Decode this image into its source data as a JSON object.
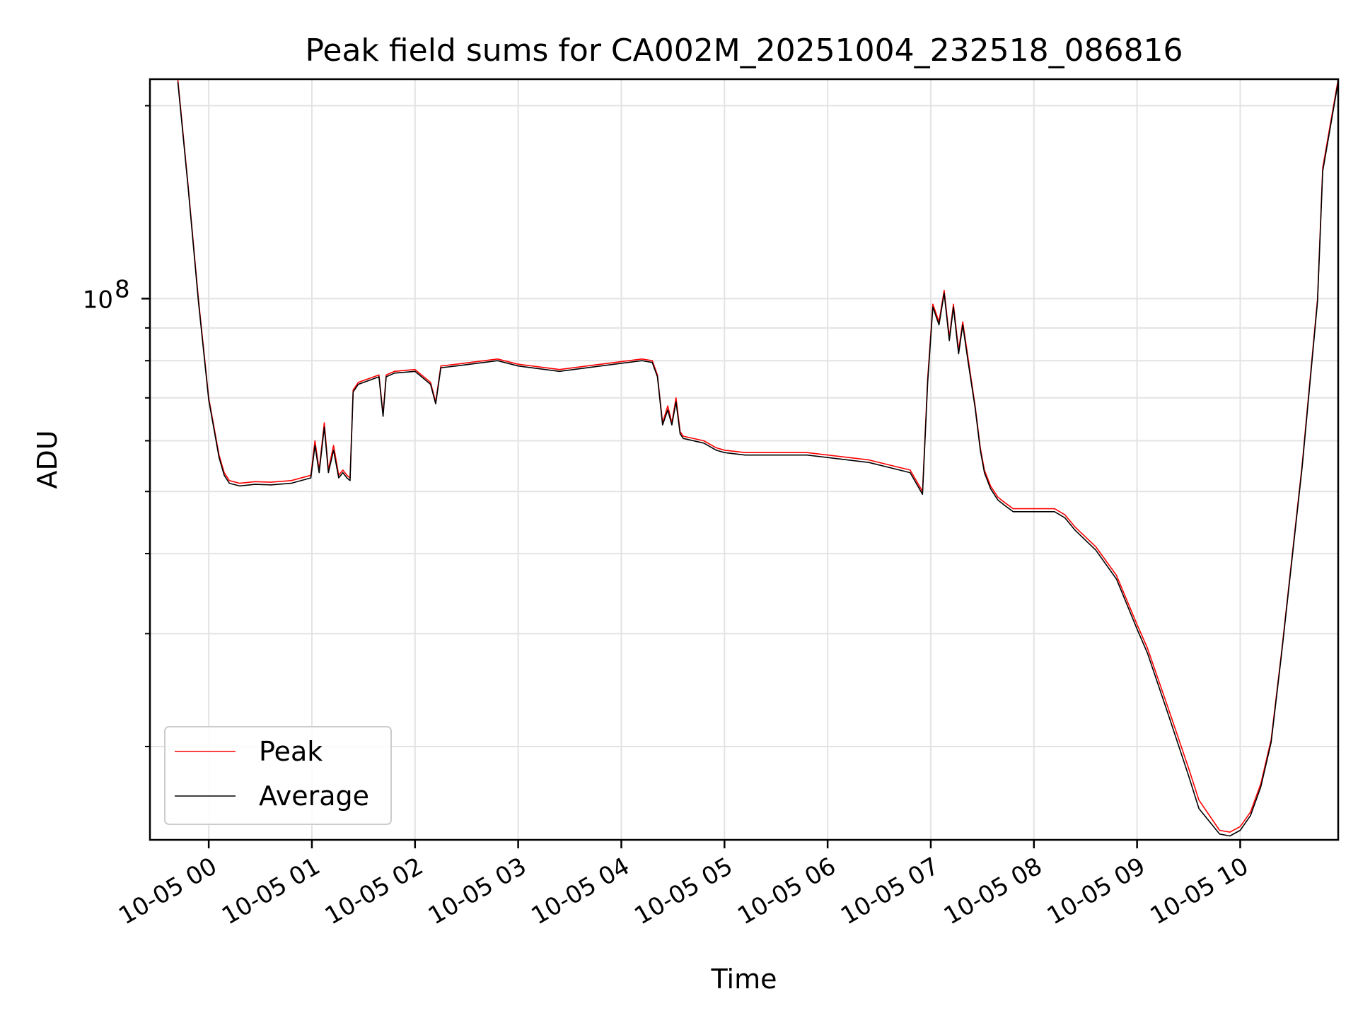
{
  "chart_data": {
    "type": "line",
    "title": "Peak field sums for CA002M_20251004_232518_086816",
    "xlabel": "Time",
    "ylabel": "ADU",
    "yscale": "log",
    "grid": true,
    "legend_position": "lower-left",
    "x_unit": "hours since 10-05 00:00",
    "xlim": [
      -0.57,
      10.95
    ],
    "ylim": [
      14300000,
      220000000
    ],
    "x_ticks": [
      0,
      1,
      2,
      3,
      4,
      5,
      6,
      7,
      8,
      9,
      10
    ],
    "x_tick_labels": [
      "10-05 00",
      "10-05 01",
      "10-05 02",
      "10-05 03",
      "10-05 04",
      "10-05 05",
      "10-05 06",
      "10-05 07",
      "10-05 08",
      "10-05 09",
      "10-05 10"
    ],
    "y_major_tick": {
      "value": 100000000,
      "label_base": "10",
      "label_exponent": "8"
    },
    "y_minor_ticks": [
      20000000,
      30000000,
      40000000,
      50000000,
      60000000,
      70000000,
      80000000,
      90000000,
      200000000
    ],
    "series": [
      {
        "name": "Peak",
        "color": "#ff0000",
        "x": [
          -0.3,
          -0.2,
          -0.1,
          0.0,
          0.1,
          0.15,
          0.2,
          0.3,
          0.45,
          0.6,
          0.8,
          0.99,
          1.03,
          1.07,
          1.12,
          1.16,
          1.21,
          1.26,
          1.3,
          1.34,
          1.37,
          1.4,
          1.45,
          1.65,
          1.69,
          1.72,
          1.8,
          2.0,
          2.15,
          2.2,
          2.25,
          2.4,
          2.8,
          3.0,
          3.4,
          3.8,
          4.2,
          4.3,
          4.35,
          4.4,
          4.45,
          4.49,
          4.53,
          4.57,
          4.6,
          4.8,
          4.92,
          5.0,
          5.2,
          5.8,
          6.4,
          6.8,
          6.92,
          6.97,
          7.02,
          7.08,
          7.13,
          7.18,
          7.22,
          7.27,
          7.31,
          7.36,
          7.43,
          7.48,
          7.52,
          7.58,
          7.65,
          7.72,
          7.8,
          8.0,
          8.2,
          8.3,
          8.4,
          8.6,
          8.8,
          9.0,
          9.1,
          9.3,
          9.5,
          9.6,
          9.8,
          9.9,
          10.0,
          10.1,
          10.2,
          10.3,
          10.4,
          10.6,
          10.75,
          10.8,
          10.95
        ],
        "values": [
          220000000,
          150000000,
          100000000,
          70000000,
          57000000,
          53500000,
          52000000,
          51500000,
          51800000,
          51700000,
          52000000,
          53000000,
          60000000,
          54000000,
          64000000,
          54000000,
          59000000,
          53000000,
          54000000,
          53000000,
          52500000,
          72000000,
          74000000,
          76000000,
          66000000,
          76000000,
          77000000,
          77500000,
          74000000,
          69000000,
          78500000,
          79000000,
          80500000,
          79000000,
          77500000,
          79000000,
          80500000,
          80000000,
          76000000,
          64000000,
          68000000,
          64000000,
          70000000,
          62000000,
          61000000,
          60000000,
          58500000,
          58000000,
          57500000,
          57500000,
          56000000,
          54000000,
          50000000,
          75000000,
          98000000,
          92000000,
          103000000,
          87000000,
          98000000,
          83000000,
          92000000,
          81000000,
          68000000,
          58500000,
          54000000,
          51000000,
          49000000,
          48000000,
          47000000,
          47000000,
          47000000,
          46000000,
          44000000,
          41000000,
          37000000,
          31000000,
          28500000,
          23000000,
          18500000,
          16500000,
          14800000,
          14700000,
          15000000,
          15800000,
          17500000,
          20500000,
          28000000,
          55000000,
          100000000,
          160000000,
          220000000
        ],
        "linewidth": 1.6
      },
      {
        "name": "Average",
        "color": "#000000",
        "x": [
          -0.3,
          -0.2,
          -0.1,
          0.0,
          0.1,
          0.15,
          0.2,
          0.3,
          0.45,
          0.6,
          0.8,
          0.99,
          1.03,
          1.07,
          1.12,
          1.16,
          1.21,
          1.26,
          1.3,
          1.34,
          1.37,
          1.4,
          1.45,
          1.65,
          1.69,
          1.72,
          1.8,
          2.0,
          2.15,
          2.2,
          2.25,
          2.4,
          2.8,
          3.0,
          3.4,
          3.8,
          4.2,
          4.3,
          4.35,
          4.4,
          4.45,
          4.49,
          4.53,
          4.57,
          4.6,
          4.8,
          4.92,
          5.0,
          5.2,
          5.8,
          6.4,
          6.8,
          6.92,
          6.97,
          7.02,
          7.08,
          7.13,
          7.18,
          7.22,
          7.27,
          7.31,
          7.36,
          7.43,
          7.48,
          7.52,
          7.58,
          7.65,
          7.72,
          7.8,
          8.0,
          8.2,
          8.3,
          8.4,
          8.6,
          8.8,
          9.0,
          9.1,
          9.3,
          9.5,
          9.6,
          9.8,
          9.9,
          10.0,
          10.1,
          10.2,
          10.3,
          10.4,
          10.6,
          10.75,
          10.8,
          10.95
        ],
        "values": [
          218000000,
          149000000,
          99000000,
          69500000,
          56500000,
          53000000,
          51500000,
          51000000,
          51300000,
          51200000,
          51500000,
          52500000,
          59000000,
          53500000,
          63000000,
          53500000,
          58000000,
          52500000,
          53500000,
          52500000,
          52000000,
          71500000,
          73500000,
          75500000,
          65500000,
          75500000,
          76500000,
          77000000,
          73500000,
          68500000,
          78000000,
          78500000,
          80000000,
          78500000,
          77000000,
          78500000,
          80000000,
          79500000,
          75500000,
          63500000,
          67000000,
          63500000,
          69000000,
          61500000,
          60500000,
          59500000,
          58000000,
          57500000,
          57000000,
          57000000,
          55500000,
          53500000,
          49500000,
          74000000,
          97000000,
          91000000,
          102000000,
          86000000,
          97000000,
          82000000,
          91000000,
          80000000,
          67500000,
          58000000,
          53500000,
          50500000,
          48500000,
          47500000,
          46500000,
          46500000,
          46500000,
          45500000,
          43500000,
          40500000,
          36500000,
          30500000,
          28000000,
          22500000,
          18000000,
          16000000,
          14600000,
          14500000,
          14800000,
          15600000,
          17300000,
          20300000,
          27800000,
          54500000,
          99000000,
          158000000,
          218000000
        ],
        "linewidth": 1.6
      }
    ]
  }
}
